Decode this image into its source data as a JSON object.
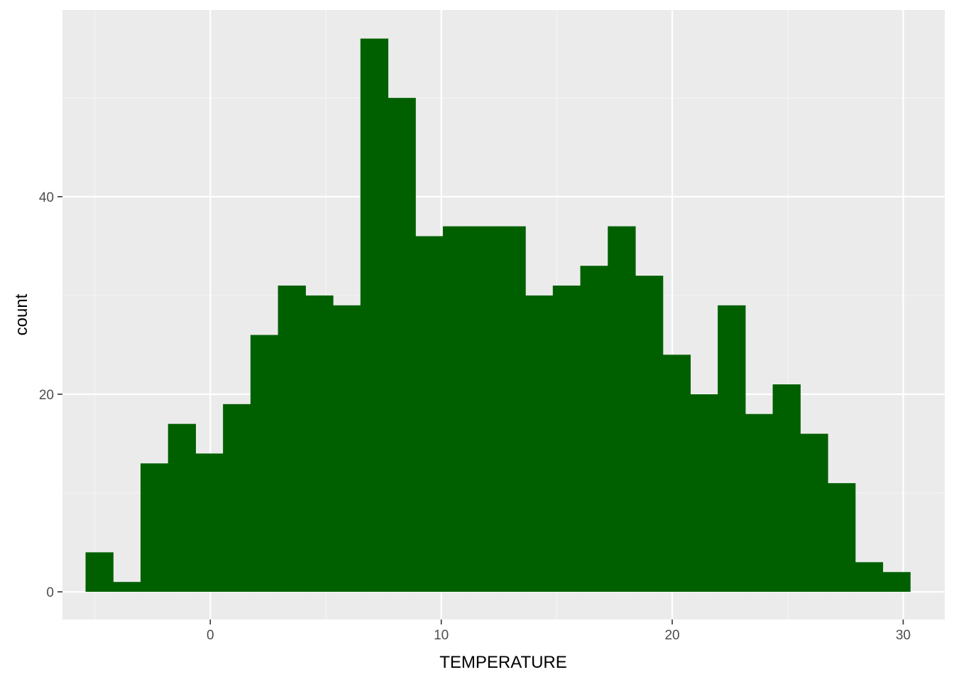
{
  "chart_data": {
    "type": "bar",
    "subtype": "histogram",
    "xlabel": "TEMPERATURE",
    "ylabel": "count",
    "xlim": [
      -6.4,
      31.8
    ],
    "ylim": [
      -2.8,
      58.9
    ],
    "x_ticks": [
      0,
      10,
      20,
      30
    ],
    "x_tick_labels": [
      "0",
      "10",
      "20",
      "30"
    ],
    "y_ticks": [
      0,
      20,
      40
    ],
    "y_tick_labels": [
      "0",
      "20",
      "40"
    ],
    "grid": true,
    "bin_width": 1.19,
    "bin_start": -5.4,
    "counts": [
      4,
      1,
      13,
      17,
      14,
      19,
      26,
      31,
      30,
      29,
      56,
      50,
      36,
      37,
      37,
      37,
      30,
      31,
      33,
      37,
      32,
      24,
      20,
      29,
      18,
      21,
      16,
      11,
      3,
      2
    ],
    "colors": {
      "bar_fill": "#006000",
      "panel_background": "#ebebeb",
      "grid_major": "#ffffff",
      "grid_minor": "#f5f5f5"
    }
  }
}
